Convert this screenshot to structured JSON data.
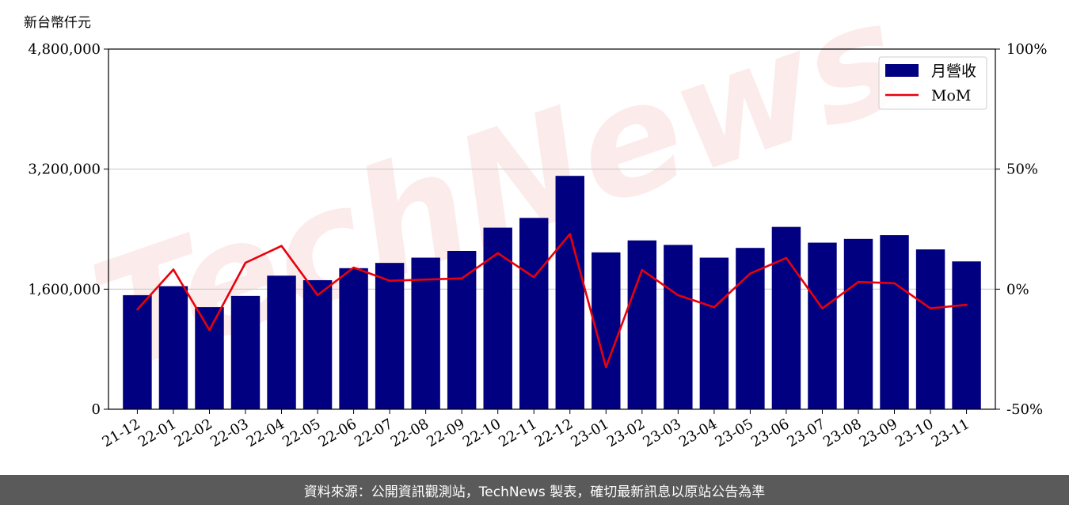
{
  "chart_data": {
    "type": "bar",
    "unit_label": "新台幣仟元",
    "categories": [
      "21-12",
      "22-01",
      "22-02",
      "22-03",
      "22-04",
      "22-05",
      "22-06",
      "22-07",
      "22-08",
      "22-09",
      "22-10",
      "22-11",
      "22-12",
      "23-01",
      "23-02",
      "23-03",
      "23-04",
      "23-05",
      "23-06",
      "23-07",
      "23-08",
      "23-09",
      "23-10",
      "23-11"
    ],
    "series": [
      {
        "name": "月營收",
        "kind": "bar",
        "axis": "left",
        "color": "#000080",
        "values": [
          1520000,
          1640000,
          1360000,
          1510000,
          1780000,
          1720000,
          1880000,
          1950000,
          2020000,
          2110000,
          2420000,
          2550000,
          3110000,
          2090000,
          2250000,
          2190000,
          2020000,
          2150000,
          2430000,
          2220000,
          2270000,
          2320000,
          2130000,
          1970000
        ]
      },
      {
        "name": "MoM",
        "kind": "line",
        "axis": "right",
        "color": "#e8000b",
        "values": [
          -8.5,
          8.2,
          -17.0,
          11.0,
          18.0,
          -2.5,
          9.0,
          3.5,
          4.0,
          4.5,
          15.0,
          5.0,
          23.0,
          -32.5,
          8.0,
          -2.5,
          -7.5,
          6.5,
          13.0,
          -8.0,
          3.0,
          2.5,
          -8.0,
          -6.5
        ]
      }
    ],
    "ylim_left": [
      0,
      4800000
    ],
    "yticks_left": [
      "0",
      "1,600,000",
      "3,200,000",
      "4,800,000"
    ],
    "ylim_right": [
      -50,
      100
    ],
    "yticks_right": [
      "-50%",
      "0%",
      "50%",
      "100%"
    ],
    "grid": "horizontal",
    "legend_position": "top-right"
  },
  "watermark": "TechNews",
  "footer": "資料來源：公開資訊觀測站，TechNews 製表，確切最新訊息以原站公告為準"
}
